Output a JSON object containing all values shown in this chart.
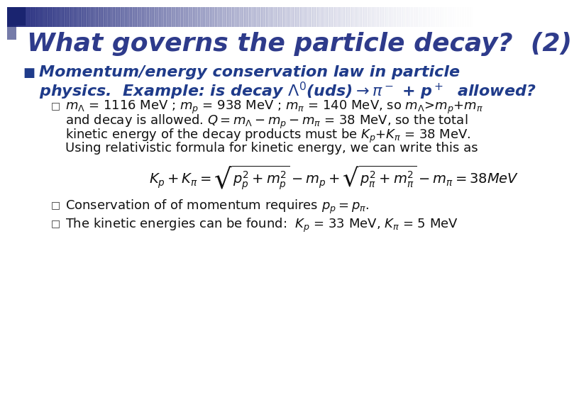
{
  "title": "What governs the particle decay?  (2)",
  "title_color": "#2E3B8B",
  "title_fontsize": 26,
  "bg_color": "#FFFFFF",
  "bullet_color": "#1F3B8A",
  "bullet_fontsize": 16,
  "sub_bullet_fontsize": 13,
  "sub_text_color": "#111111",
  "bullet_marker_color": "#1F3B8A",
  "sub_bullet_marker_color": "#333333"
}
